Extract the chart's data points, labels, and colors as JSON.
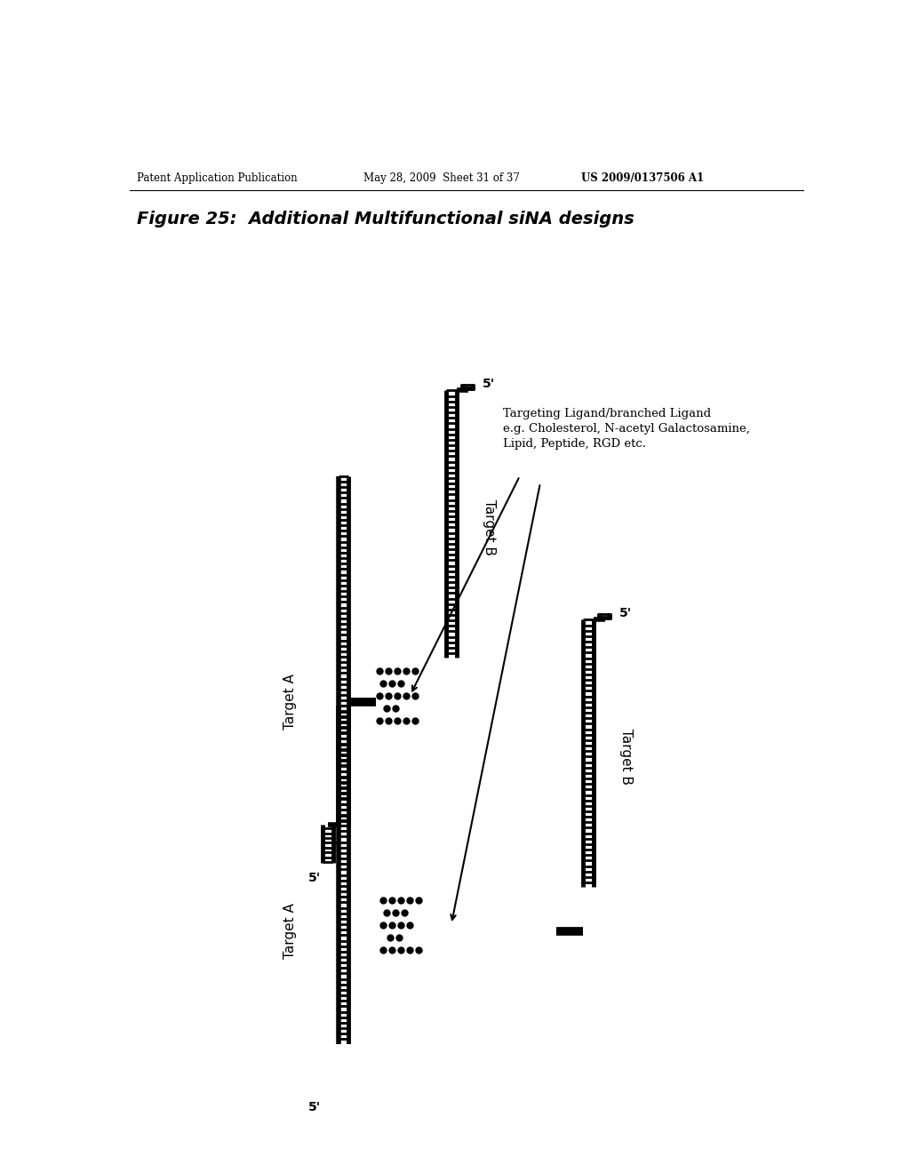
{
  "title": "Figure 25:  Additional Multifunctional siNA designs",
  "header_left": "Patent Application Publication",
  "header_center": "May 28, 2009  Sheet 31 of 37",
  "header_right": "US 2009/0137506 A1",
  "annotation_line1": "Targeting Ligand/branched Ligand",
  "annotation_line2": "e.g. Cholesterol, N-acetyl Galactosamine,",
  "annotation_line3": "Lipid, Peptide, RGD etc.",
  "bg_color": "#ffffff"
}
